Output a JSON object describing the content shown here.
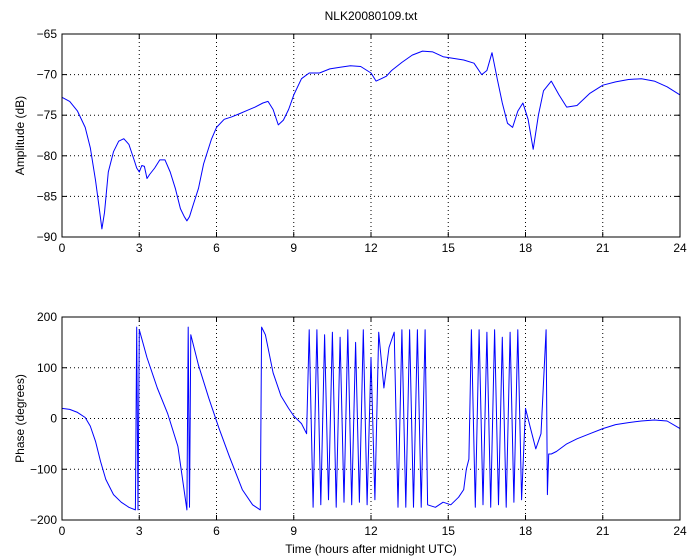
{
  "figure": {
    "title": "NLK20080109.txt",
    "colors": {
      "line": "#0000ff",
      "axes": "#000000",
      "grid": "#000000",
      "background": "#ffffff"
    }
  },
  "chart_data": [
    {
      "type": "line",
      "title": "NLK20080109.txt",
      "xlabel": "",
      "ylabel": "Amplitude (dB)",
      "xlim": [
        0,
        24
      ],
      "ylim": [
        -90,
        -65
      ],
      "xticks": [
        0,
        3,
        6,
        9,
        12,
        15,
        18,
        21,
        24
      ],
      "yticks": [
        -90,
        -85,
        -80,
        -75,
        -70,
        -65
      ],
      "xtick_labels": [
        "0",
        "3",
        "6",
        "9",
        "12",
        "15",
        "18",
        "21",
        "24"
      ],
      "ytick_labels": [
        "−90",
        "−85",
        "−80",
        "−75",
        "−70",
        "−65"
      ],
      "grid": true,
      "series": [
        {
          "x": [
            0,
            0.3,
            0.6,
            0.9,
            1.1,
            1.3,
            1.45,
            1.55,
            1.65,
            1.8,
            2.0,
            2.2,
            2.4,
            2.6,
            2.8,
            2.9,
            3.0,
            3.1,
            3.2,
            3.3,
            3.4,
            3.6,
            3.8,
            4.0,
            4.2,
            4.4,
            4.6,
            4.75,
            4.85,
            4.95,
            5.1,
            5.3,
            5.5,
            5.8,
            6.0,
            6.3,
            6.6,
            6.9,
            7.2,
            7.5,
            7.8,
            8.0,
            8.2,
            8.4,
            8.6,
            8.8,
            9.0,
            9.3,
            9.6,
            10.0,
            10.4,
            10.8,
            11.2,
            11.6,
            12.0,
            12.2,
            12.4,
            12.6,
            12.8,
            13.2,
            13.6,
            14.0,
            14.4,
            14.8,
            15.2,
            15.6,
            16.0,
            16.3,
            16.5,
            16.7,
            16.9,
            17.1,
            17.3,
            17.5,
            17.7,
            17.9,
            18.1,
            18.3,
            18.5,
            18.7,
            19.0,
            19.3,
            19.6,
            20.0,
            20.5,
            21.0,
            21.5,
            22.0,
            22.5,
            23.0,
            23.5,
            24.0
          ],
          "y": [
            -72.8,
            -73.3,
            -74.5,
            -76.5,
            -79,
            -83,
            -86.5,
            -89,
            -87,
            -82,
            -79.5,
            -78.2,
            -77.9,
            -78.6,
            -80.5,
            -81.5,
            -82,
            -81.2,
            -81.3,
            -82.8,
            -82.3,
            -81.5,
            -80.5,
            -80.5,
            -82,
            -84,
            -86.5,
            -87.5,
            -88,
            -87.5,
            -86,
            -84,
            -81,
            -78,
            -76.5,
            -75.5,
            -75.2,
            -74.8,
            -74.4,
            -74,
            -73.5,
            -73.3,
            -74.3,
            -76.2,
            -75.6,
            -74.3,
            -72.5,
            -70.5,
            -69.8,
            -69.8,
            -69.3,
            -69.1,
            -68.9,
            -69,
            -69.8,
            -70.8,
            -70.5,
            -70.2,
            -69.5,
            -68.5,
            -67.6,
            -67.1,
            -67.2,
            -67.8,
            -68,
            -68.2,
            -68.6,
            -70,
            -69.5,
            -67.3,
            -70.5,
            -73.5,
            -76,
            -76.5,
            -74.5,
            -73.5,
            -75.5,
            -79.2,
            -75,
            -72,
            -70.8,
            -72.5,
            -74,
            -73.8,
            -72.3,
            -71.3,
            -70.9,
            -70.6,
            -70.5,
            -70.8,
            -71.5,
            -72.5
          ]
        }
      ]
    },
    {
      "type": "line",
      "title": "",
      "xlabel": "Time (hours after midnight UTC)",
      "ylabel": "Phase (degrees)",
      "xlim": [
        0,
        24
      ],
      "ylim": [
        -200,
        200
      ],
      "xticks": [
        0,
        3,
        6,
        9,
        12,
        15,
        18,
        21,
        24
      ],
      "yticks": [
        -200,
        -100,
        0,
        100,
        200
      ],
      "xtick_labels": [
        "0",
        "3",
        "6",
        "9",
        "12",
        "15",
        "18",
        "21",
        "24"
      ],
      "ytick_labels": [
        "−200",
        "−100",
        "0",
        "100",
        "200"
      ],
      "grid": true,
      "series": [
        {
          "x": [
            0,
            0.3,
            0.6,
            0.9,
            1.1,
            1.3,
            1.5,
            1.7,
            2.0,
            2.3,
            2.6,
            2.85,
            2.9,
            2.95,
            3.0,
            3.3,
            3.7,
            4.1,
            4.5,
            4.85,
            4.9,
            4.95,
            5.0,
            5.3,
            5.7,
            6.1,
            6.5,
            7.0,
            7.4,
            7.7,
            7.75,
            7.9,
            8.2,
            8.5,
            8.8,
            9.0,
            9.3,
            9.5,
            9.6,
            9.75,
            9.9,
            10.05,
            10.2,
            10.35,
            10.5,
            10.65,
            10.8,
            10.95,
            11.1,
            11.25,
            11.4,
            11.55,
            11.7,
            11.85,
            12.0,
            12.15,
            12.3,
            12.5,
            12.7,
            12.9,
            13.05,
            13.2,
            13.35,
            13.5,
            13.65,
            13.8,
            13.95,
            14.1,
            14.2,
            14.5,
            14.8,
            15.1,
            15.4,
            15.6,
            15.7,
            15.8,
            15.9,
            16.05,
            16.2,
            16.35,
            16.5,
            16.65,
            16.8,
            16.95,
            17.1,
            17.25,
            17.4,
            17.55,
            17.7,
            17.85,
            18.0,
            18.2,
            18.4,
            18.6,
            18.8,
            18.85,
            18.9,
            19.0,
            19.2,
            19.6,
            20.0,
            20.5,
            21.0,
            21.5,
            22.0,
            22.5,
            23.0,
            23.5,
            24.0
          ],
          "y": [
            20,
            18,
            12,
            2,
            -15,
            -45,
            -85,
            -120,
            -150,
            -165,
            -175,
            -180,
            180,
            -180,
            175,
            120,
            60,
            10,
            -55,
            -180,
            180,
            -175,
            165,
            105,
            40,
            -20,
            -75,
            -140,
            -170,
            -180,
            180,
            165,
            90,
            45,
            20,
            5,
            -10,
            -30,
            175,
            -175,
            175,
            -170,
            165,
            -160,
            170,
            -175,
            160,
            -165,
            175,
            -170,
            150,
            -165,
            175,
            -170,
            120,
            -160,
            170,
            60,
            140,
            170,
            -175,
            175,
            -175,
            175,
            -175,
            175,
            -175,
            175,
            -170,
            -175,
            -165,
            -170,
            -155,
            -140,
            -100,
            -80,
            175,
            -175,
            175,
            -170,
            170,
            -175,
            175,
            -170,
            160,
            -175,
            170,
            -165,
            175,
            -160,
            20,
            -20,
            -60,
            -30,
            175,
            -150,
            -70,
            -70,
            -65,
            -50,
            -40,
            -30,
            -20,
            -12,
            -8,
            -5,
            -3,
            -5,
            -20
          ]
        }
      ]
    }
  ]
}
